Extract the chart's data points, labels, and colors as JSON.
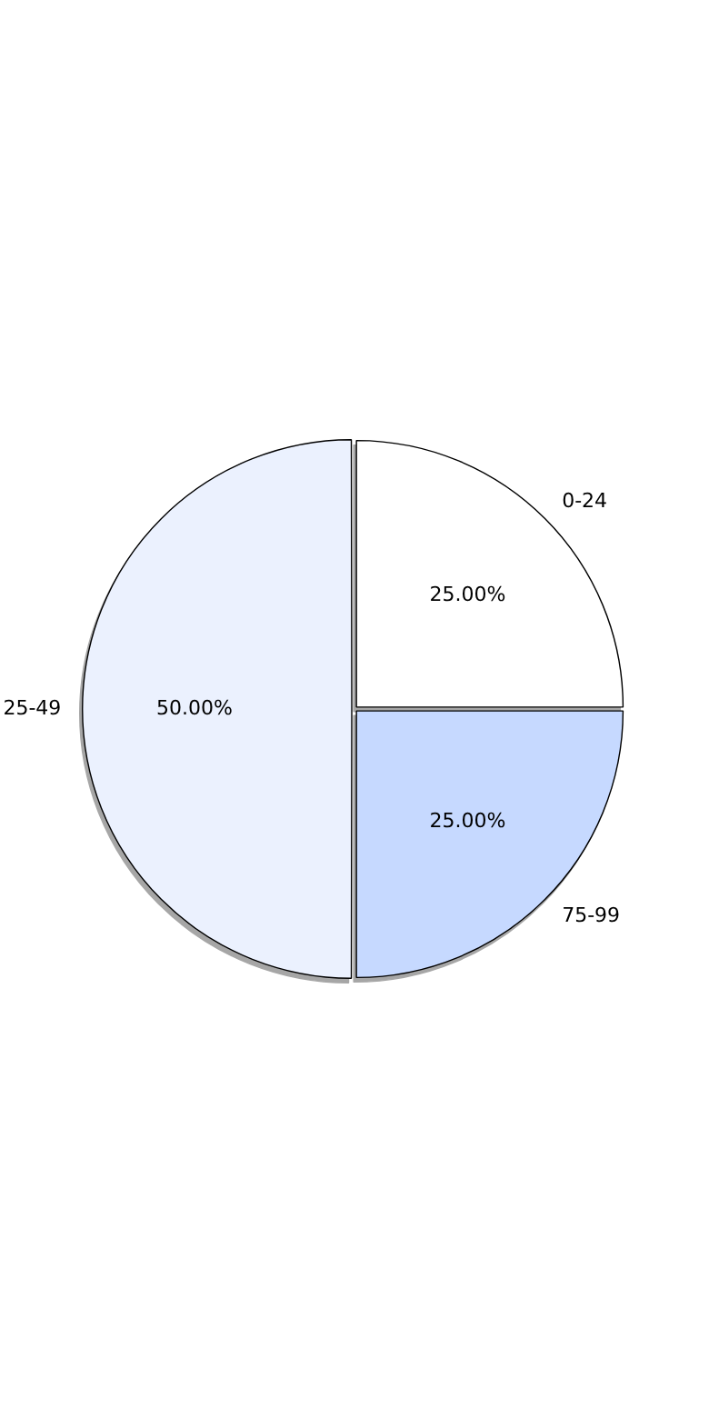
{
  "chart_data": {
    "type": "pie",
    "categories": [
      "0-24",
      "75-99",
      "25-49"
    ],
    "values": [
      25,
      25,
      50
    ],
    "colors": [
      "#ffffff",
      "#c6d9ff",
      "#ebf1fe"
    ],
    "value_labels": [
      "25.00%",
      "25.00%",
      "50.00%"
    ],
    "legend": false
  }
}
